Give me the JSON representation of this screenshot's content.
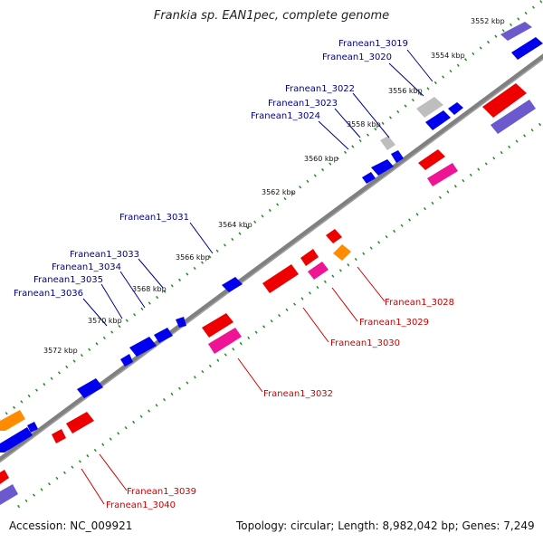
{
  "title": "Frankia sp. EAN1pec, complete genome",
  "footer": {
    "accession": "Accession: NC_009921",
    "summary": "Topology: circular; Length: 8,982,042 bp; Genes: 7,249"
  },
  "colors": {
    "backbone": "#808080",
    "tick": "#228B22",
    "label_plus": "#00008B",
    "label_minus": "#CC0000",
    "gene_blue": "#0000EE",
    "gene_red": "#EE0000",
    "gene_pink": "#EE1493",
    "gene_orange": "#FF8C00",
    "gene_gray": "#BEBEBE",
    "gene_slate": "#6A5ACD"
  },
  "kbp_labels": [
    "3552 kbp",
    "3554 kbp",
    "3556 kbp",
    "3558 kbp",
    "3560 kbp",
    "3562 kbp",
    "3564 kbp",
    "3566 kbp",
    "3568 kbp",
    "3570 kbp",
    "3572 kbp"
  ],
  "gene_labels_plus": [
    "Franean1_3019",
    "Franean1_3020",
    "Franean1_3022",
    "Franean1_3023",
    "Franean1_3024",
    "Franean1_3031",
    "Franean1_3033",
    "Franean1_3034",
    "Franean1_3035",
    "Franean1_3036"
  ],
  "gene_labels_minus": [
    "Franean1_3028",
    "Franean1_3029",
    "Franean1_3030",
    "Franean1_3032",
    "Franean1_3039",
    "Franean1_3040"
  ]
}
